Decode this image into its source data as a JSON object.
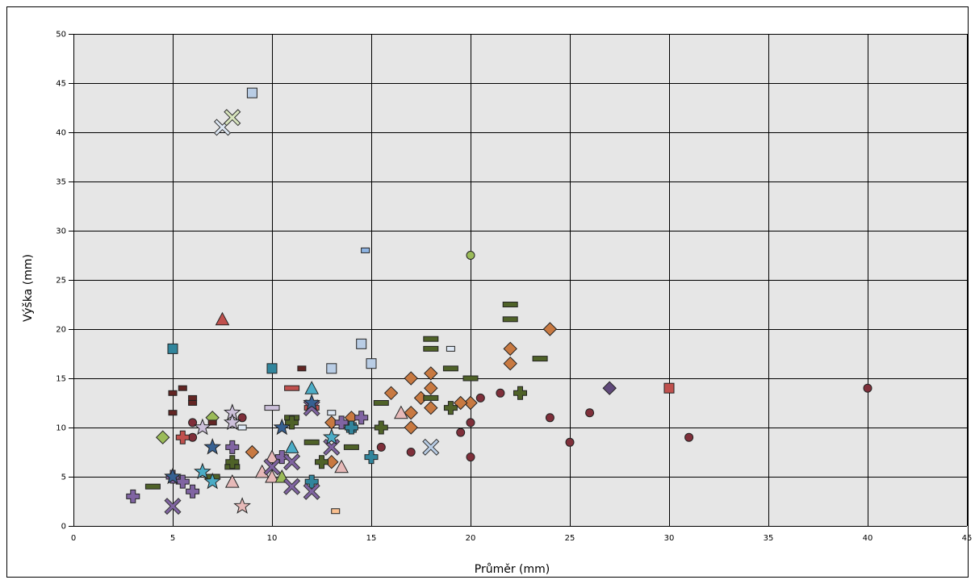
{
  "chart_data": {
    "type": "scatter",
    "title": "",
    "xlabel": "Průměr (mm)",
    "ylabel": "Výška (mm)",
    "xlim": [
      0,
      45
    ],
    "ylim": [
      0,
      50
    ],
    "xticks": [
      "0",
      "5",
      "10",
      "15",
      "20",
      "25",
      "30",
      "35",
      "40",
      "45"
    ],
    "yticks": [
      "0",
      "5",
      "10",
      "15",
      "20",
      "25",
      "30",
      "35",
      "40",
      "45",
      "50"
    ],
    "grid": true,
    "legend": "none",
    "plot_background": "#e6e6e6",
    "series": [
      {
        "color": "#7f2f3a",
        "marker": "circle",
        "points": [
          [
            40,
            14
          ],
          [
            31,
            9
          ],
          [
            26,
            11.5
          ],
          [
            25,
            8.5
          ],
          [
            24,
            11
          ],
          [
            21.5,
            13.5
          ],
          [
            20.5,
            13
          ],
          [
            20,
            10.5
          ],
          [
            20,
            7
          ],
          [
            19.5,
            9.5
          ],
          [
            17,
            7.5
          ],
          [
            15.5,
            8
          ],
          [
            8.5,
            11
          ],
          [
            6,
            10.5
          ],
          [
            6,
            9
          ]
        ]
      },
      {
        "color": "#9bbb59",
        "marker": "circle",
        "points": [
          [
            20,
            27.5
          ]
        ]
      },
      {
        "color": "#c87941",
        "marker": "diamond",
        "points": [
          [
            24,
            20
          ],
          [
            22,
            18
          ],
          [
            22,
            16.5
          ],
          [
            20,
            12.5
          ],
          [
            19.5,
            12.5
          ],
          [
            18,
            15.5
          ],
          [
            18,
            14
          ],
          [
            18,
            12
          ],
          [
            17.5,
            13
          ],
          [
            17,
            15
          ],
          [
            17,
            11.5
          ],
          [
            17,
            10
          ],
          [
            16,
            13.5
          ],
          [
            14,
            11
          ],
          [
            13,
            10.5
          ],
          [
            13,
            6.5
          ],
          [
            9,
            7.5
          ]
        ]
      },
      {
        "color": "#60497a",
        "marker": "diamond",
        "points": [
          [
            27,
            14
          ]
        ]
      },
      {
        "color": "#9bbb59",
        "marker": "diamond",
        "points": [
          [
            4.5,
            9
          ],
          [
            7,
            11
          ]
        ]
      },
      {
        "color": "#c0504d",
        "marker": "square",
        "points": [
          [
            30,
            14
          ]
        ]
      },
      {
        "color": "#31859c",
        "marker": "square",
        "points": [
          [
            5,
            18
          ],
          [
            10,
            16
          ],
          [
            14,
            10
          ]
        ]
      },
      {
        "color": "#b9cde5",
        "marker": "square",
        "points": [
          [
            9,
            44
          ],
          [
            14.5,
            18.5
          ],
          [
            15,
            16.5
          ],
          [
            13,
            16
          ]
        ]
      },
      {
        "color": "#4f6228",
        "marker": "dash",
        "points": [
          [
            22,
            22.5
          ],
          [
            22,
            21
          ],
          [
            18,
            19
          ],
          [
            18,
            18
          ],
          [
            23.5,
            17
          ],
          [
            19,
            16
          ],
          [
            20,
            15
          ],
          [
            15.5,
            12.5
          ],
          [
            18,
            13
          ],
          [
            14,
            8
          ],
          [
            8,
            6
          ],
          [
            7,
            5
          ],
          [
            4,
            4
          ],
          [
            12,
            8.5
          ],
          [
            11,
            11
          ]
        ]
      },
      {
        "color": "#c0504d",
        "marker": "dash",
        "points": [
          [
            11,
            14
          ],
          [
            12,
            12
          ]
        ]
      },
      {
        "color": "#ccc0da",
        "marker": "dash",
        "points": [
          [
            10,
            12
          ]
        ]
      },
      {
        "color": "#632523",
        "marker": "small-dash",
        "points": [
          [
            5,
            13.5
          ],
          [
            5,
            11.5
          ],
          [
            5.5,
            14
          ],
          [
            6,
            13
          ],
          [
            6,
            12.5
          ],
          [
            11.5,
            16
          ],
          [
            7,
            10.5
          ]
        ]
      },
      {
        "color": "#8eb4e3",
        "marker": "small-dash",
        "points": [
          [
            14.7,
            28
          ]
        ]
      },
      {
        "color": "#dce6f2",
        "marker": "small-dash",
        "points": [
          [
            19,
            18
          ],
          [
            13,
            11.5
          ],
          [
            8.5,
            10
          ]
        ]
      },
      {
        "color": "#fac090",
        "marker": "small-dash",
        "points": [
          [
            13.2,
            1.5
          ]
        ]
      },
      {
        "color": "#4f6228",
        "marker": "plus",
        "points": [
          [
            22.5,
            13.5
          ],
          [
            19,
            12
          ],
          [
            15.5,
            10
          ],
          [
            12.5,
            6.5
          ],
          [
            8,
            6.5
          ],
          [
            11,
            10.5
          ]
        ]
      },
      {
        "color": "#31859c",
        "marker": "plus",
        "points": [
          [
            15,
            7
          ],
          [
            12,
            4.5
          ],
          [
            14,
            10
          ]
        ]
      },
      {
        "color": "#8064a2",
        "marker": "plus",
        "points": [
          [
            3,
            3
          ],
          [
            6,
            3.5
          ],
          [
            8,
            8
          ],
          [
            14.5,
            11
          ],
          [
            13.5,
            10.5
          ],
          [
            10.5,
            7
          ],
          [
            5.5,
            4.5
          ],
          [
            5,
            5
          ]
        ]
      },
      {
        "color": "#c0504d",
        "marker": "plus",
        "points": [
          [
            5.5,
            9
          ]
        ]
      },
      {
        "color": "#c0504d",
        "marker": "triangle",
        "points": [
          [
            7.5,
            21
          ]
        ]
      },
      {
        "color": "#4bacc6",
        "marker": "triangle",
        "points": [
          [
            12,
            14
          ],
          [
            11,
            8
          ]
        ]
      },
      {
        "color": "#e6b9b8",
        "marker": "triangle",
        "points": [
          [
            16.5,
            11.5
          ],
          [
            13.5,
            6
          ],
          [
            10,
            5
          ],
          [
            9.5,
            5.5
          ],
          [
            8,
            4.5
          ],
          [
            10,
            7
          ]
        ]
      },
      {
        "color": "#9bbb59",
        "marker": "triangle",
        "points": [
          [
            10.5,
            5
          ]
        ]
      },
      {
        "color": "#dce6f2",
        "marker": "x",
        "points": [
          [
            7.5,
            40.5
          ]
        ]
      },
      {
        "color": "#d7e4bd",
        "marker": "x",
        "points": [
          [
            8,
            41.5
          ]
        ]
      },
      {
        "color": "#b9cde5",
        "marker": "x",
        "points": [
          [
            18,
            8
          ]
        ]
      },
      {
        "color": "#8064a2",
        "marker": "x",
        "points": [
          [
            5,
            2
          ],
          [
            11,
            4
          ],
          [
            12,
            3.5
          ],
          [
            10,
            6
          ],
          [
            13,
            8
          ],
          [
            11,
            6.5
          ],
          [
            12,
            12
          ]
        ]
      },
      {
        "color": "#366092",
        "marker": "star",
        "points": [
          [
            5,
            5
          ],
          [
            7,
            8
          ],
          [
            10.5,
            10
          ],
          [
            12,
            12.5
          ]
        ]
      },
      {
        "color": "#4bacc6",
        "marker": "star",
        "points": [
          [
            13,
            9
          ],
          [
            7,
            4.5
          ],
          [
            6.5,
            5.5
          ]
        ]
      },
      {
        "color": "#ccc0da",
        "marker": "star",
        "points": [
          [
            8,
            11.5
          ],
          [
            8,
            10.5
          ],
          [
            6.5,
            10
          ]
        ]
      },
      {
        "color": "#e6b9b8",
        "marker": "star",
        "points": [
          [
            8.5,
            2
          ]
        ]
      }
    ]
  }
}
